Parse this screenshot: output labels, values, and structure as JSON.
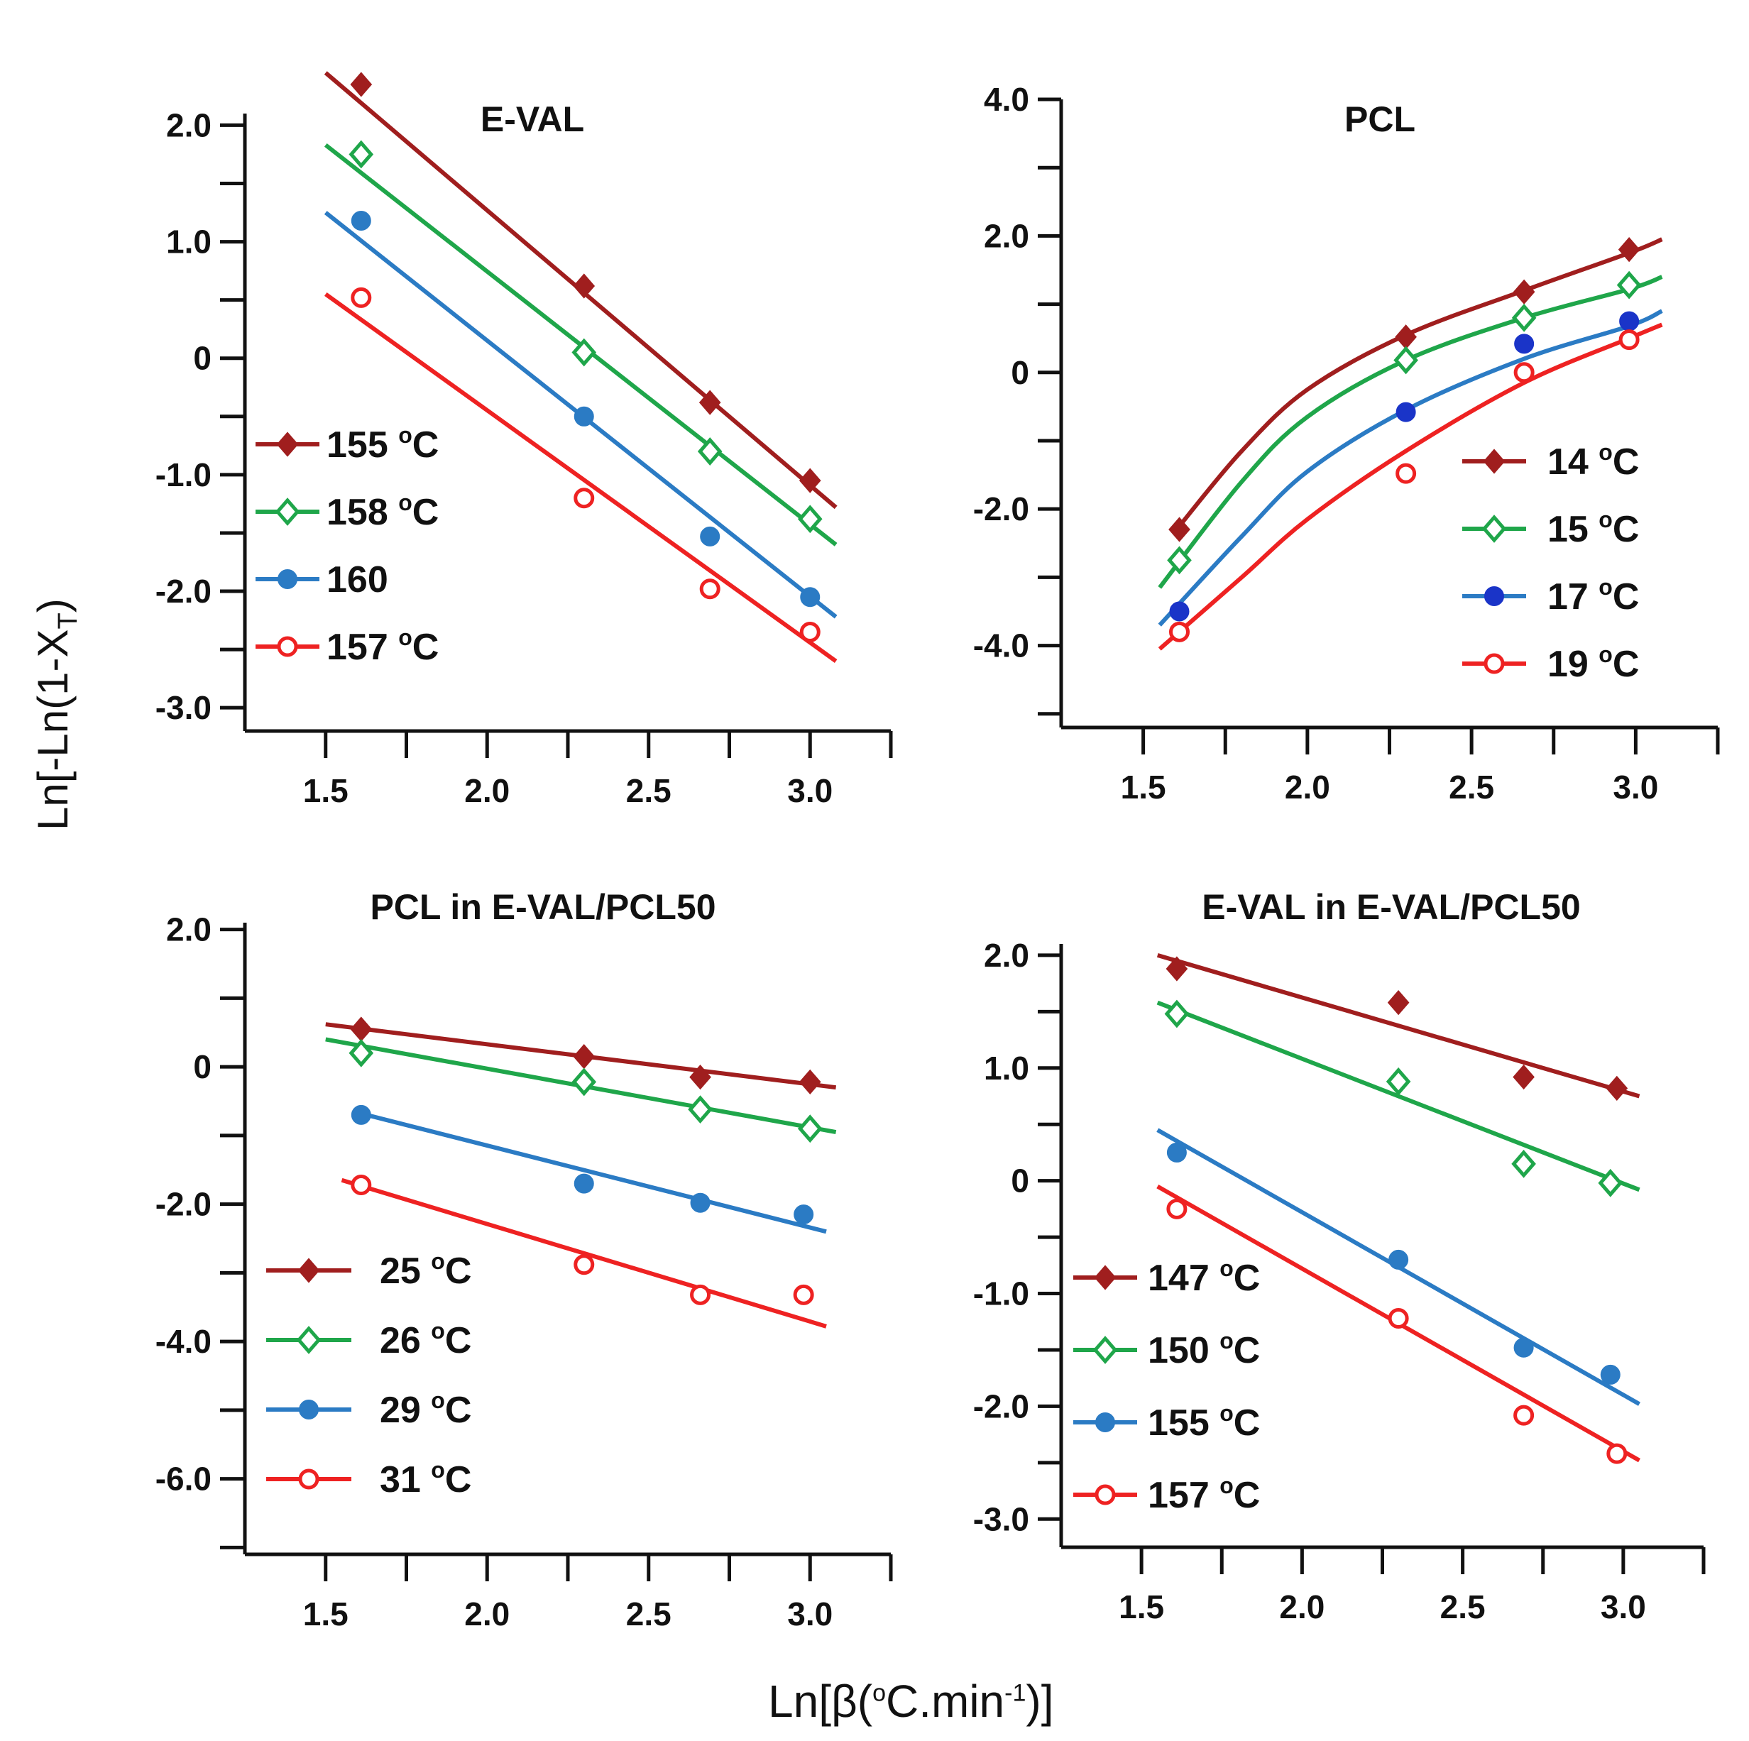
{
  "figure": {
    "ylabel_main": "Ln[-Ln(1-X",
    "ylabel_sub": "T",
    "ylabel_end": ")",
    "xlabel_main": "Ln[β(",
    "xlabel_sup1": "o",
    "xlabel_mid": "C.min",
    "xlabel_sup2": "-1",
    "xlabel_end": ")]"
  },
  "chart_data": [
    {
      "type": "scatter",
      "title": "E-VAL",
      "xlim": [
        1.25,
        3.25
      ],
      "ylim": [
        -3.2,
        2.1
      ],
      "xticks": [
        1.5,
        2.0,
        2.5,
        3.0
      ],
      "xtick_labels": [
        "1.5",
        "2.0",
        "2.5",
        "3.0"
      ],
      "yticks": [
        2.0,
        1.0,
        0,
        -1.0,
        -2.0,
        -3.0
      ],
      "ytick_labels": [
        "2.0",
        "1.0",
        "0",
        "-1.0",
        "-2.0",
        "-3.0"
      ],
      "legend_position": "left-middle",
      "series": [
        {
          "name": "155",
          "unit": "oC",
          "color": "#a01e1e",
          "marker": "diamond-filled",
          "x": [
            1.61,
            2.3,
            2.69,
            3.0
          ],
          "y": [
            2.35,
            0.62,
            -0.38,
            -1.05
          ],
          "fit": {
            "type": "linear",
            "x": [
              1.5,
              3.08
            ],
            "y": [
              2.45,
              -1.28
            ]
          }
        },
        {
          "name": "158",
          "unit": "oC",
          "color": "#1fa64a",
          "marker": "diamond-open",
          "x": [
            1.61,
            2.3,
            2.69,
            3.0
          ],
          "y": [
            1.75,
            0.05,
            -0.8,
            -1.38
          ],
          "fit": {
            "type": "linear",
            "x": [
              1.5,
              3.08
            ],
            "y": [
              1.83,
              -1.6
            ]
          }
        },
        {
          "name": "160",
          "unit": "",
          "color": "#2b7bc4",
          "marker": "circle-filled",
          "x": [
            1.61,
            2.3,
            2.69,
            3.0
          ],
          "y": [
            1.18,
            -0.5,
            -1.53,
            -2.05
          ],
          "fit": {
            "type": "linear",
            "x": [
              1.5,
              3.08
            ],
            "y": [
              1.25,
              -2.22
            ]
          }
        },
        {
          "name": "157",
          "unit": "oC",
          "color": "#ee2222",
          "marker": "circle-open",
          "x": [
            1.61,
            2.3,
            2.69,
            3.0
          ],
          "y": [
            0.52,
            -1.2,
            -1.98,
            -2.35
          ],
          "fit": {
            "type": "linear",
            "x": [
              1.5,
              3.08
            ],
            "y": [
              0.55,
              -2.6
            ]
          }
        }
      ]
    },
    {
      "type": "scatter",
      "title": "PCL",
      "xlim": [
        1.25,
        3.25
      ],
      "ylim": [
        -5.2,
        4.0
      ],
      "xticks": [
        1.5,
        2.0,
        2.5,
        3.0
      ],
      "xtick_labels": [
        "1.5",
        "2.0",
        "2.5",
        "3.0"
      ],
      "yticks": [
        4.0,
        2.0,
        0,
        -2.0,
        -4.0
      ],
      "ytick_labels": [
        "4.0",
        "2.0",
        "0",
        "-2.0",
        "-4.0"
      ],
      "legend_position": "right-lower",
      "series": [
        {
          "name": "14",
          "unit": "oC",
          "color": "#a01e1e",
          "marker": "diamond-filled",
          "x": [
            1.61,
            2.3,
            2.66,
            2.98
          ],
          "y": [
            -2.3,
            0.52,
            1.18,
            1.8
          ],
          "fit": {
            "type": "smooth",
            "x": [
              1.61,
              1.8,
              2.0,
              2.3,
              2.66,
              2.98,
              3.08
            ],
            "y": [
              -2.25,
              -1.15,
              -0.25,
              0.55,
              1.2,
              1.75,
              1.95
            ]
          }
        },
        {
          "name": "15",
          "unit": "oC",
          "color": "#1fa64a",
          "marker": "diamond-open",
          "x": [
            1.61,
            2.3,
            2.66,
            2.98
          ],
          "y": [
            -2.75,
            0.18,
            0.8,
            1.28
          ],
          "fit": {
            "type": "smooth",
            "x": [
              1.55,
              1.8,
              2.0,
              2.3,
              2.66,
              2.98,
              3.08
            ],
            "y": [
              -3.15,
              -1.6,
              -0.65,
              0.18,
              0.8,
              1.22,
              1.4
            ]
          }
        },
        {
          "name": "17",
          "unit": "oC",
          "color": "#1a34c8",
          "line_color": "#2b7bc4",
          "marker": "circle-filled",
          "x": [
            1.61,
            2.3,
            2.66,
            2.98
          ],
          "y": [
            -3.5,
            -0.58,
            0.42,
            0.75
          ],
          "fit": {
            "type": "smooth",
            "x": [
              1.55,
              1.8,
              2.0,
              2.3,
              2.66,
              2.98,
              3.08
            ],
            "y": [
              -3.7,
              -2.4,
              -1.45,
              -0.55,
              0.2,
              0.68,
              0.9
            ]
          }
        },
        {
          "name": "19",
          "unit": "oC",
          "color": "#ee2222",
          "marker": "circle-open",
          "x": [
            1.61,
            2.3,
            2.66,
            2.98
          ],
          "y": [
            -3.8,
            -1.48,
            0.0,
            0.48
          ],
          "fit": {
            "type": "smooth",
            "x": [
              1.55,
              1.8,
              2.0,
              2.3,
              2.66,
              2.98,
              3.08
            ],
            "y": [
              -4.05,
              -3.0,
              -2.15,
              -1.15,
              -0.15,
              0.5,
              0.7
            ]
          }
        }
      ]
    },
    {
      "type": "scatter",
      "title": "PCL in E-VAL/PCL50",
      "xlim": [
        1.25,
        3.25
      ],
      "ylim": [
        -7.1,
        2.1
      ],
      "xticks": [
        1.5,
        2.0,
        2.5,
        3.0
      ],
      "xtick_labels": [
        "1.5",
        "2.0",
        "2.5",
        "3.0"
      ],
      "yticks": [
        2.0,
        0,
        -2.0,
        -4.0,
        -6.0
      ],
      "ytick_labels": [
        "2.0",
        "0",
        "-2.0",
        "-4.0",
        "-6.0"
      ],
      "legend_position": "left-lower",
      "series": [
        {
          "name": "25",
          "unit": "oC",
          "color": "#a01e1e",
          "marker": "diamond-filled",
          "x": [
            1.61,
            2.3,
            2.66,
            3.0
          ],
          "y": [
            0.55,
            0.15,
            -0.15,
            -0.22
          ],
          "fit": {
            "type": "linear",
            "x": [
              1.5,
              3.08
            ],
            "y": [
              0.62,
              -0.3
            ]
          }
        },
        {
          "name": "26",
          "unit": "oC",
          "color": "#1fa64a",
          "marker": "diamond-open",
          "x": [
            1.61,
            2.3,
            2.66,
            3.0
          ],
          "y": [
            0.2,
            -0.22,
            -0.62,
            -0.9
          ],
          "fit": {
            "type": "linear",
            "x": [
              1.5,
              3.08
            ],
            "y": [
              0.4,
              -0.95
            ]
          }
        },
        {
          "name": "29",
          "unit": "oC",
          "color": "#2b7bc4",
          "marker": "circle-filled",
          "x": [
            1.61,
            2.3,
            2.66,
            2.98
          ],
          "y": [
            -0.7,
            -1.7,
            -1.98,
            -2.15
          ],
          "fit": {
            "type": "linear",
            "x": [
              1.61,
              3.05
            ],
            "y": [
              -0.68,
              -2.4
            ]
          }
        },
        {
          "name": "31",
          "unit": "oC",
          "color": "#ee2222",
          "marker": "circle-open",
          "x": [
            1.61,
            2.3,
            2.66,
            2.98
          ],
          "y": [
            -1.72,
            -2.88,
            -3.32,
            -3.32
          ],
          "fit": {
            "type": "linear",
            "x": [
              1.55,
              3.05
            ],
            "y": [
              -1.65,
              -3.78
            ]
          }
        }
      ]
    },
    {
      "type": "scatter",
      "title": "E-VAL in E-VAL/PCL50",
      "xlim": [
        1.25,
        3.25
      ],
      "ylim": [
        -3.25,
        2.1
      ],
      "xticks": [
        1.5,
        2.0,
        2.5,
        3.0
      ],
      "xtick_labels": [
        "1.5",
        "2.0",
        "2.5",
        "3.0"
      ],
      "yticks": [
        2.0,
        1.0,
        0,
        -1.0,
        -2.0,
        -3.0
      ],
      "ytick_labels": [
        "2.0",
        "1.0",
        "0",
        "-1.0",
        "-2.0",
        "-3.0"
      ],
      "legend_position": "left-lower",
      "series": [
        {
          "name": "147",
          "unit": "oC",
          "color": "#a01e1e",
          "marker": "diamond-filled",
          "x": [
            1.61,
            2.3,
            2.69,
            2.98
          ],
          "y": [
            1.88,
            1.58,
            0.92,
            0.82
          ],
          "fit": {
            "type": "linear",
            "x": [
              1.55,
              3.05
            ],
            "y": [
              2.0,
              0.75
            ]
          }
        },
        {
          "name": "150",
          "unit": "oC",
          "color": "#1fa64a",
          "marker": "diamond-open",
          "x": [
            1.61,
            2.3,
            2.69,
            2.96
          ],
          "y": [
            1.48,
            0.88,
            0.15,
            -0.02
          ],
          "fit": {
            "type": "linear",
            "x": [
              1.55,
              3.05
            ],
            "y": [
              1.58,
              -0.08
            ]
          }
        },
        {
          "name": "155",
          "unit": "oC",
          "color": "#2b7bc4",
          "marker": "circle-filled",
          "x": [
            1.61,
            2.3,
            2.69,
            2.96
          ],
          "y": [
            0.25,
            -0.7,
            -1.48,
            -1.72
          ],
          "fit": {
            "type": "linear",
            "x": [
              1.55,
              3.05
            ],
            "y": [
              0.45,
              -1.98
            ]
          }
        },
        {
          "name": "157",
          "unit": "oC",
          "color": "#ee2222",
          "marker": "circle-open",
          "x": [
            1.61,
            2.3,
            2.69,
            2.98
          ],
          "y": [
            -0.25,
            -1.22,
            -2.08,
            -2.42
          ],
          "fit": {
            "type": "linear",
            "x": [
              1.55,
              3.05
            ],
            "y": [
              -0.05,
              -2.48
            ]
          }
        }
      ]
    }
  ]
}
